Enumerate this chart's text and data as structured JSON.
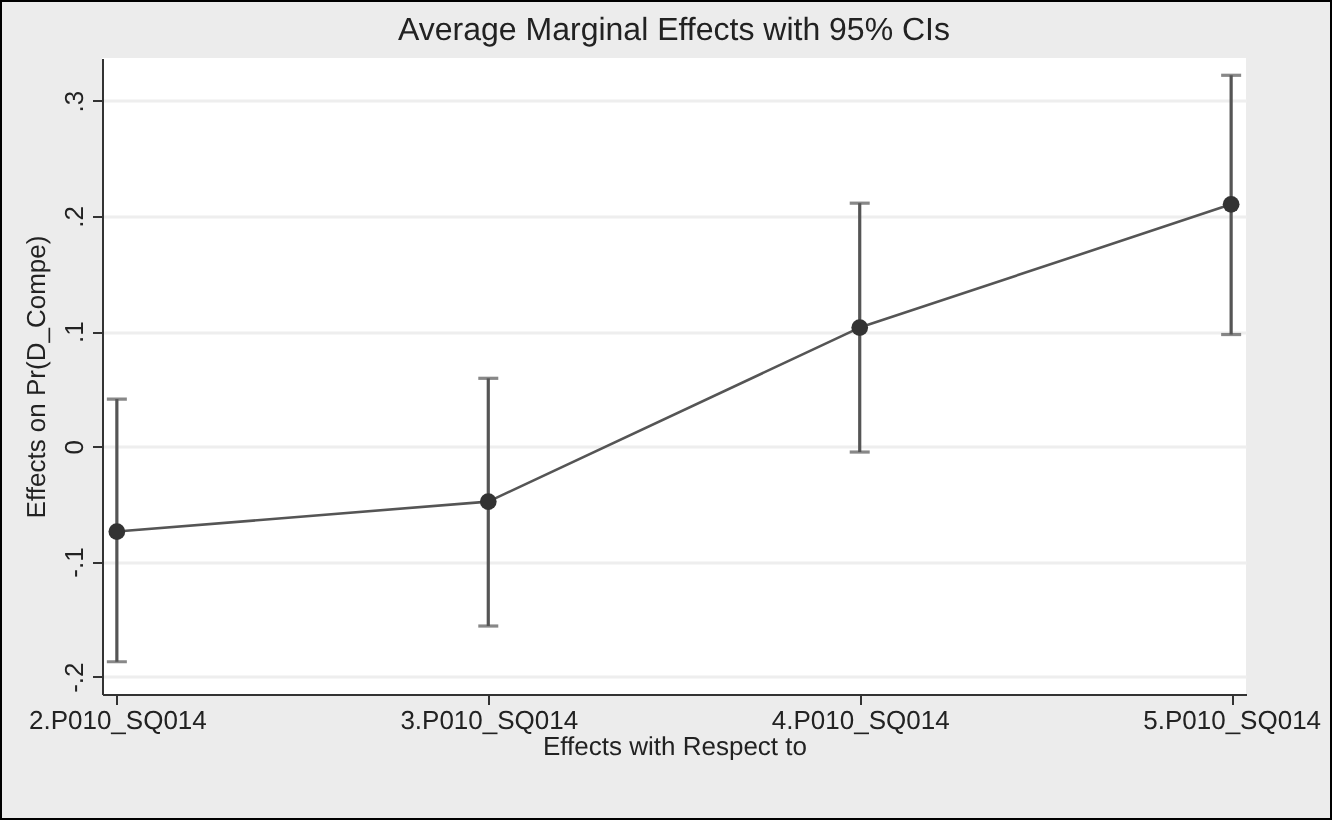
{
  "chart_data": {
    "type": "line",
    "title": "Average Marginal Effects with 95% CIs",
    "xlabel": "Effects with Respect to",
    "ylabel": "Effects on Pr(D_Compe)",
    "categories": [
      "2.P010_SQ014",
      "3.P010_SQ014",
      "4.P010_SQ014",
      "5.P010_SQ014"
    ],
    "series": [
      {
        "color": "#333333",
        "values": [
          -0.074,
          -0.048,
          0.103,
          0.21
        ],
        "errors": [
          [
            -0.187,
            0.041
          ],
          [
            -0.156,
            0.059
          ],
          [
            -0.005,
            0.211
          ],
          [
            0.097,
            0.322
          ]
        ]
      }
    ],
    "ylim": [
      -0.215,
      0.337
    ],
    "yticks": [
      {
        "value": -0.2,
        "label": "-.2"
      },
      {
        "value": -0.1,
        "label": "-.1"
      },
      0,
      {
        "value": 0.1,
        "label": ".1"
      },
      {
        "value": 0.2,
        "label": ".2"
      },
      {
        "value": 0.3,
        "label": ".3"
      }
    ],
    "grid": "y",
    "marker": "circle",
    "line_style": "solid"
  }
}
